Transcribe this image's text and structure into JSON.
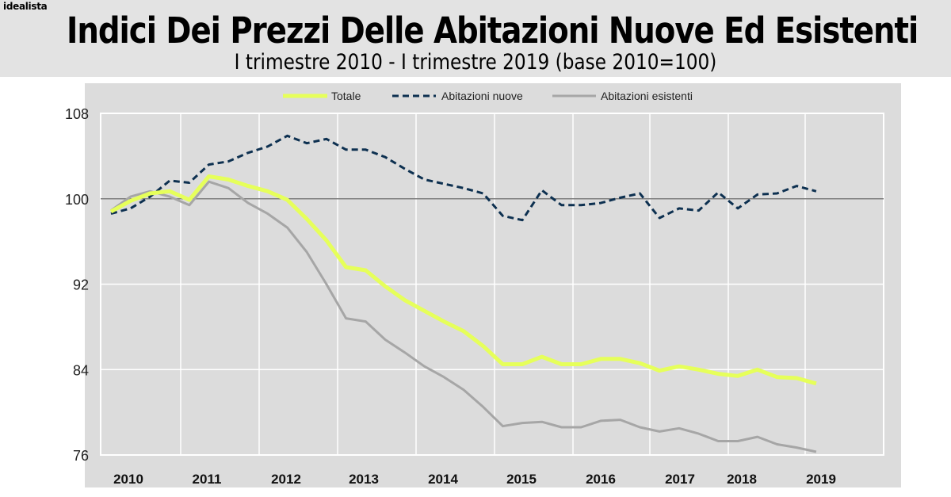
{
  "logo": "idealista",
  "header": {
    "title": "Indici Dei Prezzi Delle Abitazioni Nuove Ed Esistenti",
    "subtitle": "I trimestre 2010 - I trimestre 2019 (base 2010=100)"
  },
  "chart_data": {
    "type": "line",
    "title": "Indici Dei Prezzi Delle Abitazioni Nuove Ed Esistenti",
    "subtitle": "I trimestre 2010 - I trimestre 2019 (base 2010=100)",
    "xlabel": "",
    "ylabel": "",
    "ylim": [
      76,
      108
    ],
    "yticks": [
      "108",
      "100",
      "92",
      "84",
      "76"
    ],
    "xtick_labels": [
      "2010",
      "2011",
      "2012",
      "2013",
      "2014",
      "2015",
      "2016",
      "2017",
      "2018",
      "2019"
    ],
    "x": [
      "2010 Q1",
      "2010 Q2",
      "2010 Q3",
      "2010 Q4",
      "2011 Q1",
      "2011 Q2",
      "2011 Q3",
      "2011 Q4",
      "2012 Q1",
      "2012 Q2",
      "2012 Q3",
      "2012 Q4",
      "2013 Q1",
      "2013 Q2",
      "2013 Q3",
      "2013 Q4",
      "2014 Q1",
      "2014 Q2",
      "2014 Q3",
      "2014 Q4",
      "2015 Q1",
      "2015 Q2",
      "2015 Q3",
      "2015 Q4",
      "2016 Q1",
      "2016 Q2",
      "2016 Q3",
      "2016 Q4",
      "2017 Q1",
      "2017 Q2",
      "2017 Q3",
      "2017 Q4",
      "2018 Q1",
      "2018 Q2",
      "2018 Q3",
      "2018 Q4",
      "2019 Q1"
    ],
    "reference_line": 100,
    "grid": true,
    "legend_position": "top",
    "series": [
      {
        "name": "Totale",
        "color": "#e6ff5a",
        "style": "solid",
        "values": [
          98.8,
          99.8,
          100.5,
          100.7,
          99.9,
          102.1,
          101.8,
          101.2,
          100.7,
          99.9,
          98.1,
          96.1,
          93.6,
          93.3,
          91.8,
          90.5,
          89.5,
          88.5,
          87.6,
          86.2,
          84.5,
          84.5,
          85.2,
          84.5,
          84.5,
          85.0,
          85.0,
          84.6,
          83.9,
          84.3,
          84.0,
          83.6,
          83.4,
          84.0,
          83.3,
          83.2,
          82.7
        ]
      },
      {
        "name": "Abitazioni nuove",
        "color": "#0d3050",
        "style": "dashed",
        "values": [
          98.6,
          99.1,
          100.2,
          101.7,
          101.5,
          103.2,
          103.5,
          104.3,
          104.9,
          105.9,
          105.2,
          105.6,
          104.6,
          104.6,
          103.9,
          102.8,
          101.8,
          101.4,
          101.0,
          100.5,
          98.4,
          98.0,
          100.8,
          99.4,
          99.4,
          99.6,
          100.1,
          100.5,
          98.2,
          99.1,
          98.9,
          100.6,
          99.1,
          100.4,
          100.5,
          101.2,
          100.7
        ]
      },
      {
        "name": "Abitazioni esistenti",
        "color": "#a6a6a6",
        "style": "solid",
        "values": [
          98.9,
          100.2,
          100.7,
          100.2,
          99.4,
          101.6,
          101.0,
          99.6,
          98.6,
          97.3,
          95.0,
          92.0,
          88.8,
          88.5,
          86.8,
          85.6,
          84.3,
          83.3,
          82.1,
          80.5,
          78.7,
          79.0,
          79.1,
          78.6,
          78.6,
          79.2,
          79.3,
          78.6,
          78.2,
          78.5,
          78.0,
          77.3,
          77.3,
          77.7,
          77.0,
          76.7,
          76.3
        ]
      }
    ]
  }
}
